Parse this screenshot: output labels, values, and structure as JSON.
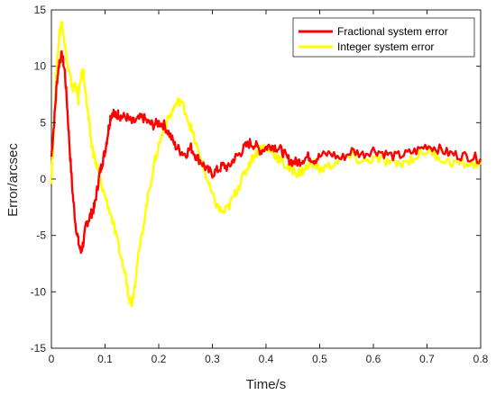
{
  "chart_data": {
    "type": "line",
    "title": "",
    "xlabel": "Time/s",
    "ylabel": "Error/arcsec",
    "xlim": [
      0,
      0.8
    ],
    "ylim": [
      -15,
      15
    ],
    "xticks": [
      0,
      0.1,
      0.2,
      0.3,
      0.4,
      0.5,
      0.6,
      0.7,
      0.8
    ],
    "xtick_labels": [
      "0",
      "0.1",
      "0.2",
      "0.3",
      "0.4",
      "0.5",
      "0.6",
      "0.7",
      "0.8"
    ],
    "yticks": [
      -15,
      -10,
      -5,
      0,
      5,
      10,
      15
    ],
    "ytick_labels": [
      "-15",
      "-10",
      "-5",
      "0",
      "5",
      "10",
      "15"
    ],
    "grid": false,
    "legend_position": "top-right",
    "series": [
      {
        "name": "Fractional system error",
        "color": "#ff0000",
        "x": [
          0,
          0.005,
          0.01,
          0.015,
          0.02,
          0.025,
          0.03,
          0.035,
          0.04,
          0.045,
          0.05,
          0.055,
          0.06,
          0.065,
          0.07,
          0.075,
          0.08,
          0.085,
          0.09,
          0.095,
          0.1,
          0.105,
          0.11,
          0.115,
          0.12,
          0.125,
          0.13,
          0.14,
          0.15,
          0.16,
          0.17,
          0.18,
          0.19,
          0.2,
          0.21,
          0.22,
          0.23,
          0.24,
          0.25,
          0.26,
          0.27,
          0.28,
          0.29,
          0.3,
          0.31,
          0.32,
          0.33,
          0.34,
          0.35,
          0.36,
          0.37,
          0.38,
          0.39,
          0.4,
          0.41,
          0.42,
          0.43,
          0.44,
          0.45,
          0.46,
          0.47,
          0.48,
          0.49,
          0.5,
          0.52,
          0.54,
          0.56,
          0.58,
          0.6,
          0.62,
          0.64,
          0.66,
          0.68,
          0.7,
          0.72,
          0.74,
          0.76,
          0.78,
          0.8
        ],
        "y": [
          2,
          5,
          8.5,
          10.5,
          11,
          9.5,
          6,
          2,
          -1.5,
          -4,
          -5.5,
          -6.5,
          -5.5,
          -4,
          -3.5,
          -3,
          -2.5,
          -1,
          0.5,
          1.5,
          2.5,
          4,
          5.5,
          6,
          5.5,
          5.8,
          5.5,
          5.5,
          5,
          5.2,
          5.5,
          5,
          4.8,
          5,
          4.8,
          4,
          3,
          2.5,
          2.2,
          2.8,
          2,
          1.5,
          0.8,
          0.5,
          0.8,
          1.2,
          1,
          1.8,
          2.2,
          2.8,
          3.2,
          3,
          2.5,
          2.8,
          3,
          2.8,
          2.5,
          1.8,
          1.5,
          1.5,
          1.8,
          2,
          1.7,
          2,
          2.3,
          1.8,
          2.5,
          2.2,
          2.6,
          2.3,
          2,
          2.2,
          2.5,
          3,
          2.7,
          2.3,
          2.1,
          2,
          1.8
        ]
      },
      {
        "name": "Integer system error",
        "color": "#ffff00",
        "x": [
          0,
          0.005,
          0.01,
          0.015,
          0.02,
          0.025,
          0.03,
          0.035,
          0.04,
          0.045,
          0.05,
          0.055,
          0.06,
          0.065,
          0.07,
          0.075,
          0.08,
          0.085,
          0.09,
          0.1,
          0.11,
          0.12,
          0.13,
          0.14,
          0.145,
          0.15,
          0.155,
          0.16,
          0.17,
          0.18,
          0.19,
          0.2,
          0.21,
          0.22,
          0.23,
          0.24,
          0.25,
          0.26,
          0.27,
          0.28,
          0.29,
          0.3,
          0.31,
          0.32,
          0.33,
          0.34,
          0.35,
          0.36,
          0.37,
          0.38,
          0.39,
          0.4,
          0.41,
          0.42,
          0.43,
          0.44,
          0.45,
          0.46,
          0.47,
          0.48,
          0.49,
          0.5,
          0.52,
          0.54,
          0.56,
          0.58,
          0.6,
          0.62,
          0.64,
          0.66,
          0.68,
          0.7,
          0.72,
          0.74,
          0.76,
          0.78,
          0.8
        ],
        "y": [
          0,
          5,
          10,
          13,
          14,
          12,
          10,
          9,
          8,
          8.5,
          7,
          9,
          9.5,
          7,
          5,
          3,
          2,
          1,
          0,
          -1.5,
          -3,
          -5,
          -7,
          -9,
          -10.5,
          -11,
          -9.5,
          -7.5,
          -4.5,
          -1.5,
          1,
          3,
          4.5,
          5.5,
          6.5,
          7,
          6,
          4.5,
          3,
          1.5,
          0,
          -1.5,
          -2.5,
          -3,
          -2.5,
          -1.5,
          -0.5,
          0.5,
          1.5,
          2.2,
          2.8,
          2.8,
          2.5,
          2,
          1.5,
          1,
          0.8,
          0.5,
          0.8,
          1.2,
          1.5,
          0.8,
          1.2,
          1.8,
          2,
          1.5,
          1.8,
          1.6,
          1.3,
          1.5,
          2,
          2.5,
          2,
          1.5,
          1.4,
          1.3,
          1.3
        ]
      }
    ]
  }
}
